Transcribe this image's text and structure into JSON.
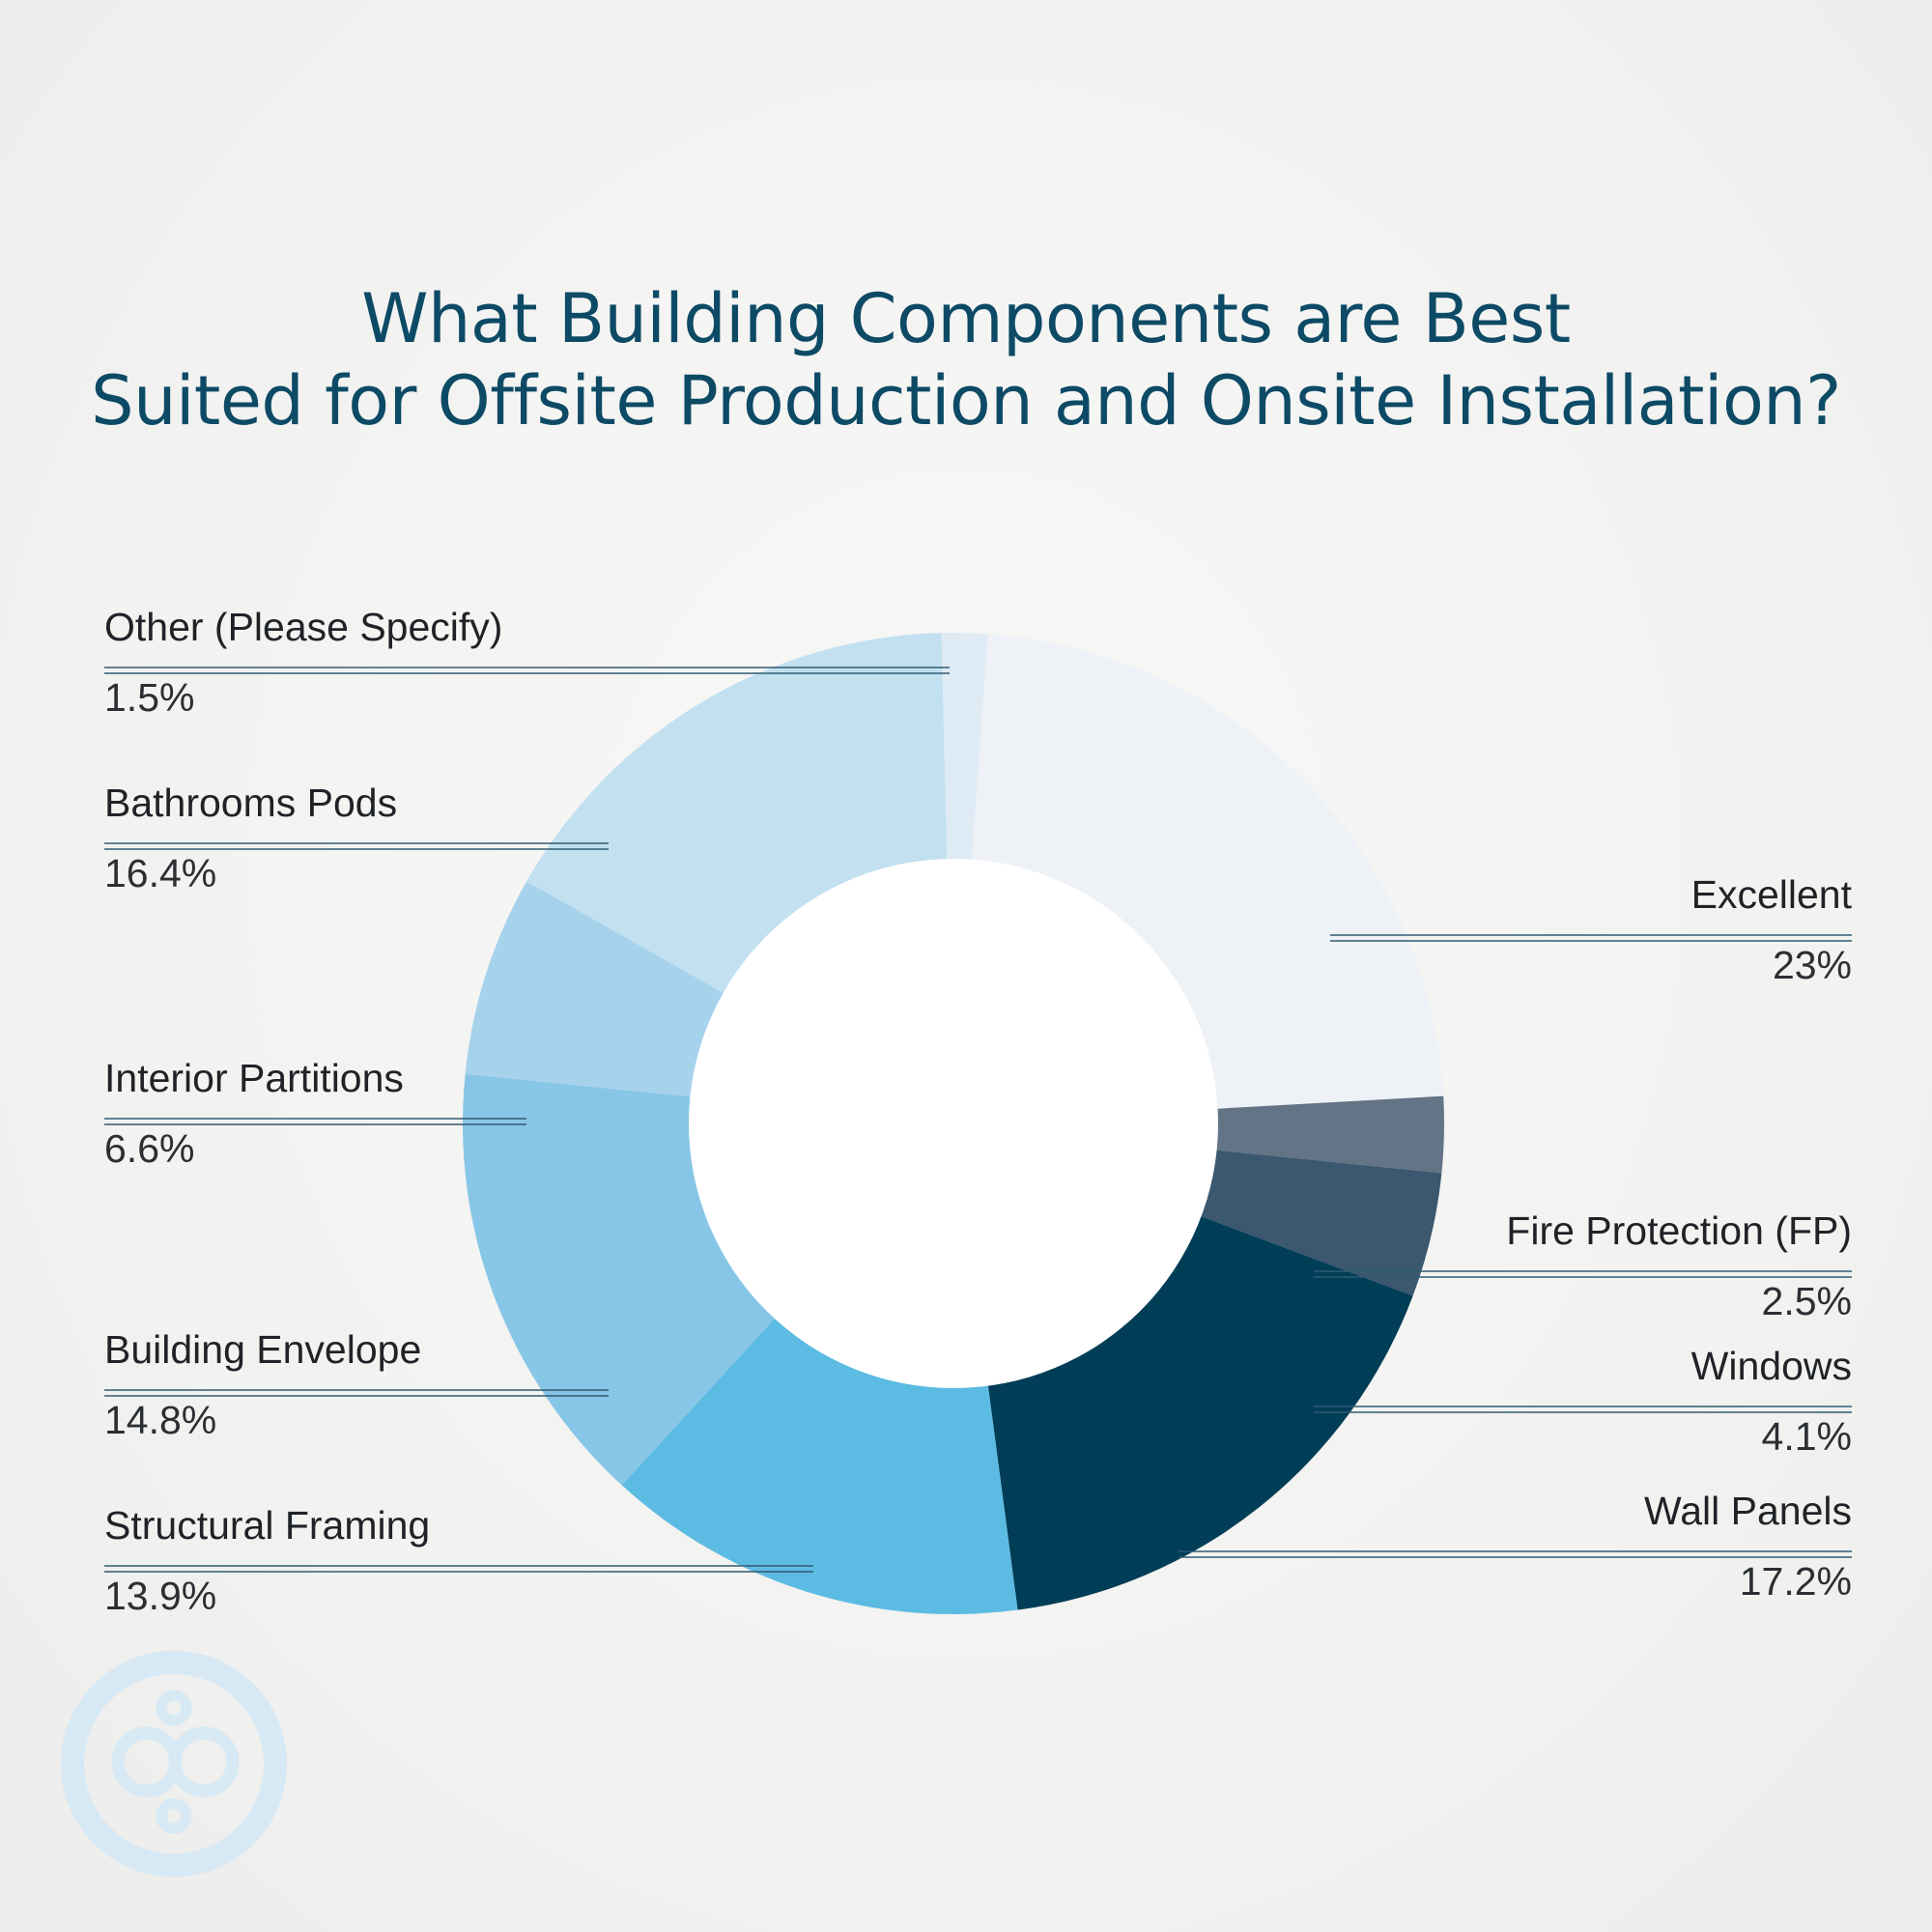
{
  "title": {
    "line1": "What Building Components are Best",
    "line2": "Suited for Offsite Production and Onsite Installation?"
  },
  "chart_data": {
    "type": "pie",
    "subtype": "donut",
    "title": "What Building Components are Best Suited for Offsite Production and Onsite Installation?",
    "slices": [
      {
        "label": "Excellent",
        "value": 23,
        "value_label": "23%",
        "color": "#eef1f6"
      },
      {
        "label": "Fire Protection (FP)",
        "value": 2.5,
        "value_label": "2.5%",
        "color": "#647487"
      },
      {
        "label": "Windows",
        "value": 4.1,
        "value_label": "4.1%",
        "color": "#3b586e"
      },
      {
        "label": "Wall Panels",
        "value": 17.2,
        "value_label": "17.2%",
        "color": "#003d56"
      },
      {
        "label": "Structural Framing",
        "value": 13.9,
        "value_label": "13.9%",
        "color": "#5cbbe2"
      },
      {
        "label": "Building Envelope",
        "value": 14.8,
        "value_label": "14.8%",
        "color": "#87c6e6"
      },
      {
        "label": "Interior Partitions",
        "value": 6.6,
        "value_label": "6.6%",
        "color": "#a6d2ec"
      },
      {
        "label": "Bathrooms Pods",
        "value": 16.4,
        "value_label": "16.4%",
        "color": "#c2e0f0"
      },
      {
        "label": "Other (Please Specify)",
        "value": 1.5,
        "value_label": "1.5%",
        "color": "#deebf5"
      }
    ],
    "legend": "none",
    "grid": false
  },
  "colors": {
    "title": "#0d4a66",
    "leader_line": "#315a72",
    "logo": "#d6e9f5"
  },
  "logo": {
    "icon": "company-logo-icon"
  }
}
